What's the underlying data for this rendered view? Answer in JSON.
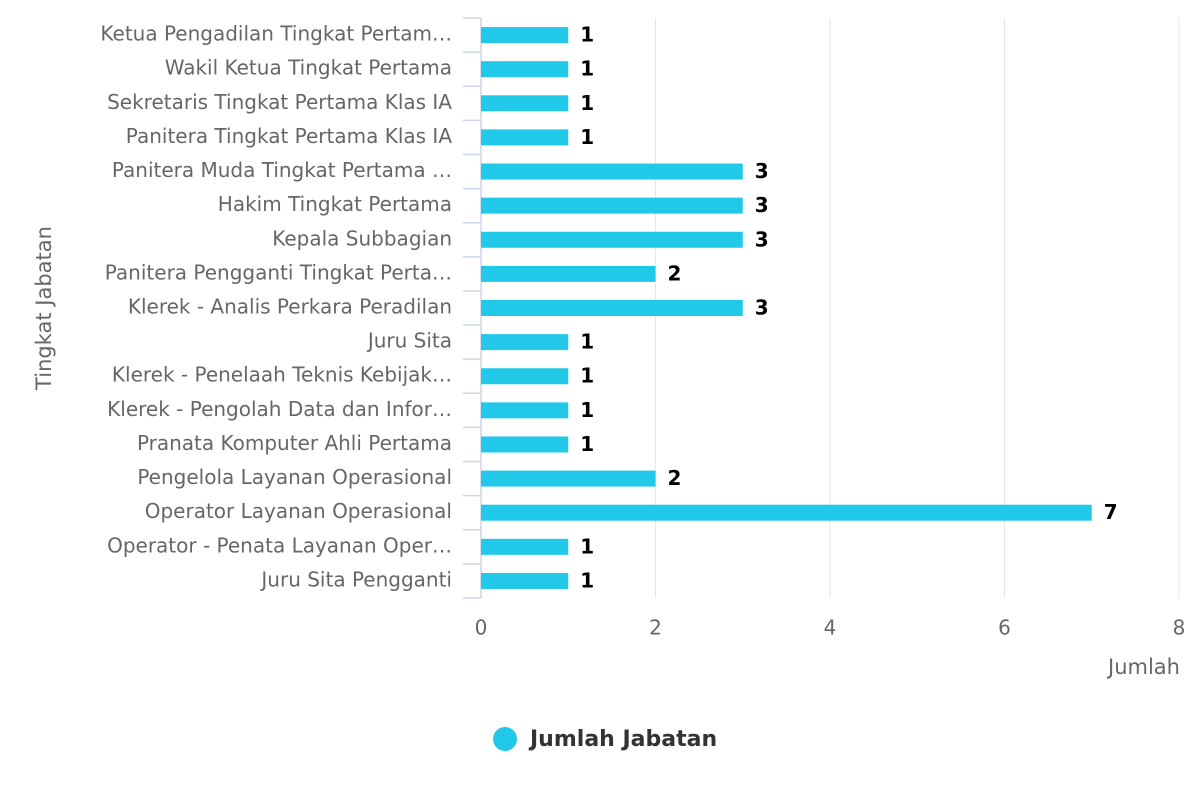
{
  "chart_data": {
    "type": "bar",
    "orientation": "horizontal",
    "categories": [
      "Ketua Pengadilan Tingkat Pertam…",
      "Wakil Ketua Tingkat Pertama",
      "Sekretaris Tingkat Pertama Klas IA",
      "Panitera Tingkat Pertama Klas IA",
      "Panitera Muda Tingkat Pertama …",
      "Hakim Tingkat Pertama",
      "Kepala Subbagian",
      "Panitera Pengganti Tingkat Perta…",
      "Klerek - Analis Perkara Peradilan",
      "Juru Sita",
      "Klerek - Penelaah Teknis Kebijak…",
      "Klerek - Pengolah Data dan Infor…",
      "Pranata Komputer Ahli Pertama",
      "Pengelola Layanan Operasional",
      "Operator Layanan Operasional",
      "Operator - Penata Layanan Oper…",
      "Juru Sita Pengganti"
    ],
    "series": [
      {
        "name": "Jumlah Jabatan",
        "color": "#22c8e8",
        "values": [
          1,
          1,
          1,
          1,
          3,
          3,
          3,
          2,
          3,
          1,
          1,
          1,
          1,
          2,
          7,
          1,
          1
        ]
      }
    ],
    "x_label": "Jumlah",
    "y_label": "Tingkat Jabatan",
    "xlim": [
      0,
      8
    ],
    "xticks": [
      0,
      2,
      4,
      6,
      8
    ],
    "grid": true,
    "legend": "bottom"
  }
}
